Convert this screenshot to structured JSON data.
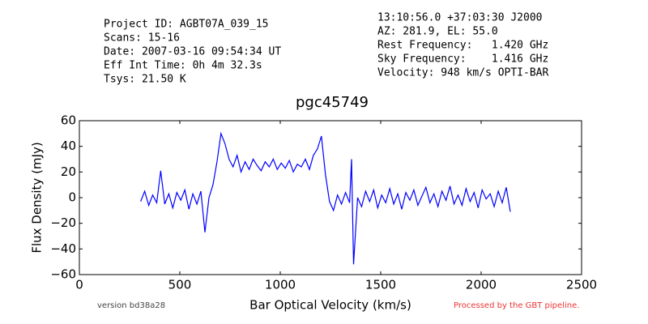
{
  "chart_data": {
    "type": "line",
    "title": "pgc45749",
    "header_left": [
      "Project ID: AGBT07A_039_15",
      "Scans: 15-16",
      "Date: 2007-03-16 09:54:34 UT",
      "Eff Int Time: 0h 4m 32.3s",
      "Tsys: 21.50 K"
    ],
    "header_right": [
      "13:10:56.0 +37:03:30 J2000",
      "AZ: 281.9, EL: 55.0",
      "Rest Frequency:   1.420 GHz",
      "Sky Frequency:    1.416 GHz",
      "Velocity: 948 km/s OPTI-BAR"
    ],
    "footer_left": "version bd38a28",
    "footer_right": "Processed by the GBT pipeline.",
    "x_label": "Bar Optical Velocity (km/s)",
    "y_label": "Flux Density (mJy)",
    "color": "#0000ff",
    "x": [
      305,
      325,
      345,
      365,
      385,
      405,
      425,
      445,
      465,
      485,
      505,
      525,
      545,
      565,
      585,
      605,
      625,
      645,
      665,
      685,
      705,
      725,
      745,
      765,
      785,
      805,
      825,
      845,
      865,
      885,
      905,
      925,
      945,
      965,
      985,
      1005,
      1025,
      1045,
      1065,
      1085,
      1105,
      1125,
      1145,
      1165,
      1185,
      1205,
      1225,
      1245,
      1265,
      1285,
      1305,
      1325,
      1345,
      1355,
      1365,
      1385,
      1405,
      1425,
      1445,
      1465,
      1485,
      1505,
      1525,
      1545,
      1565,
      1585,
      1605,
      1625,
      1645,
      1665,
      1685,
      1705,
      1725,
      1745,
      1765,
      1785,
      1805,
      1825,
      1845,
      1865,
      1885,
      1905,
      1925,
      1945,
      1965,
      1985,
      2005,
      2025,
      2045,
      2065,
      2085,
      2105,
      2125,
      2145
    ],
    "values": [
      -3,
      5,
      -6,
      2,
      -4,
      21,
      -5,
      3,
      -8,
      4,
      -2,
      6,
      -9,
      3,
      -5,
      5,
      -27,
      0,
      10,
      28,
      50,
      42,
      30,
      24,
      33,
      20,
      28,
      22,
      30,
      25,
      21,
      28,
      24,
      30,
      22,
      27,
      23,
      29,
      20,
      26,
      24,
      30,
      22,
      33,
      38,
      48,
      18,
      -3,
      -10,
      2,
      -5,
      4,
      -4,
      30,
      -52,
      0,
      -7,
      5,
      -3,
      6,
      -8,
      2,
      -4,
      7,
      -5,
      3,
      -9,
      4,
      -2,
      6,
      -6,
      1,
      8,
      -4,
      3,
      -7,
      5,
      -2,
      9,
      -5,
      2,
      -6,
      7,
      -3,
      4,
      -8,
      6,
      -1,
      3,
      -7,
      5,
      -4,
      8,
      -11
    ],
    "xlim": [
      0,
      2500
    ],
    "xticks": [
      0,
      500,
      1000,
      1500,
      2000,
      2500
    ],
    "ylim": [
      -60,
      60
    ],
    "yticks": [
      {
        "value": -60,
        "label": "−60"
      },
      {
        "value": -40,
        "label": "−40"
      },
      {
        "value": -20,
        "label": "−20"
      },
      0,
      20,
      40,
      60
    ]
  }
}
